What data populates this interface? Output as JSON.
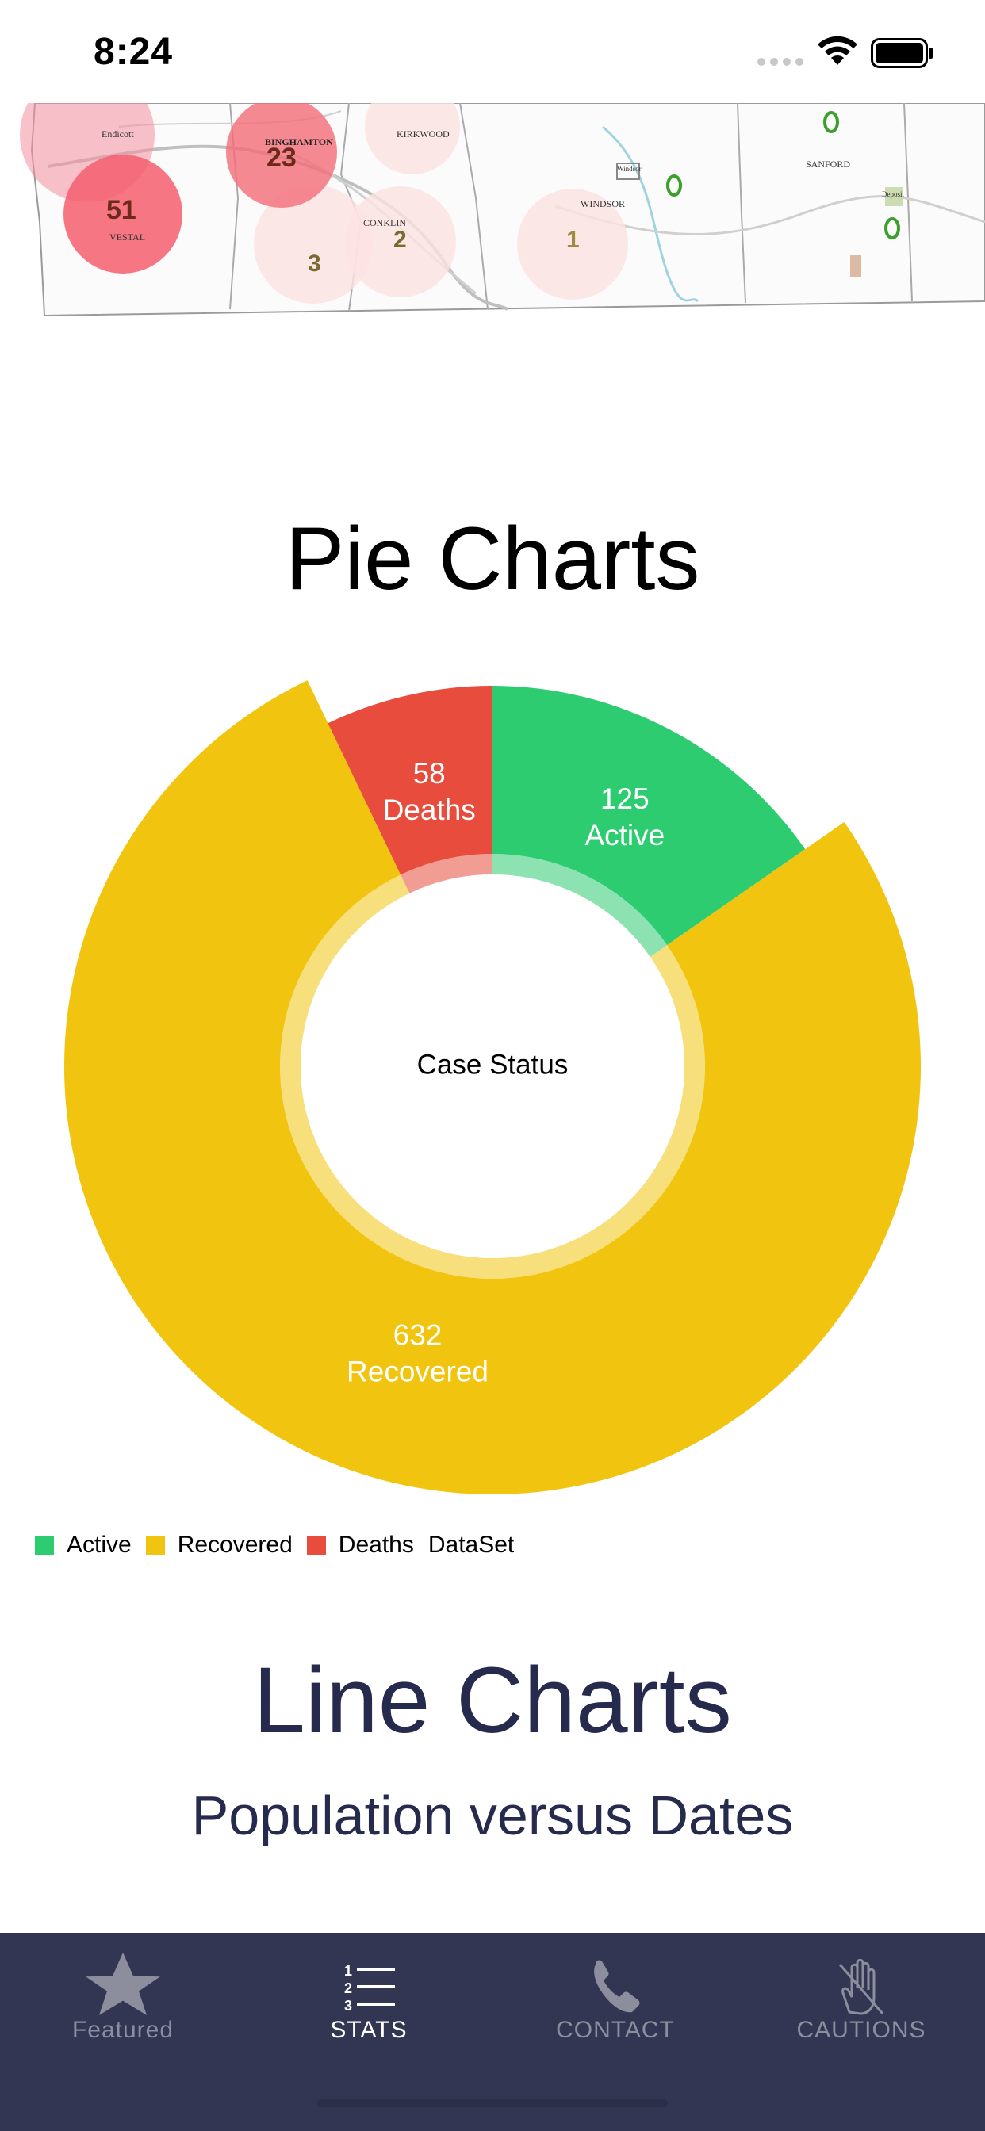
{
  "status_bar": {
    "time": "8:24"
  },
  "map": {
    "labels": [
      {
        "text": "Endicott"
      },
      {
        "text": "VESTAL"
      },
      {
        "text": "BINGHAMTON"
      },
      {
        "text": "KIRKWOOD"
      },
      {
        "text": "CONKLIN"
      },
      {
        "text": "WINDSOR"
      },
      {
        "text": "SANFORD"
      },
      {
        "text": "Windsor"
      },
      {
        "text": "Deposit"
      }
    ],
    "counts": [
      {
        "value": "51"
      },
      {
        "value": "23"
      },
      {
        "value": "3"
      },
      {
        "value": "2"
      },
      {
        "value": "1"
      },
      {
        "value": "0"
      },
      {
        "value": "0"
      },
      {
        "value": "0"
      }
    ]
  },
  "pie_section": {
    "title": "Pie Charts"
  },
  "chart_data": {
    "type": "pie",
    "center_text": "Case Status",
    "slices": [
      {
        "name": "Active",
        "value": 125,
        "color": "#2ecc71"
      },
      {
        "name": "Recovered",
        "value": 632,
        "color": "#f1c40f"
      },
      {
        "name": "Deaths",
        "value": 58,
        "color": "#e74c3c"
      }
    ],
    "legend": {
      "entries": [
        "Active",
        "Recovered",
        "Deaths"
      ],
      "dataset_label": "DataSet",
      "placement": "bottom-left"
    }
  },
  "line_section": {
    "title": "Line Charts",
    "subtitle": "Population versus Dates"
  },
  "tab_bar": {
    "tabs": [
      {
        "label": "Featured",
        "icon": "star-icon",
        "active": false
      },
      {
        "label": "STATS",
        "icon": "list-icon",
        "active": true
      },
      {
        "label": "CONTACT",
        "icon": "phone-icon",
        "active": false
      },
      {
        "label": "CAUTIONS",
        "icon": "no-touch-icon",
        "active": false
      }
    ]
  }
}
